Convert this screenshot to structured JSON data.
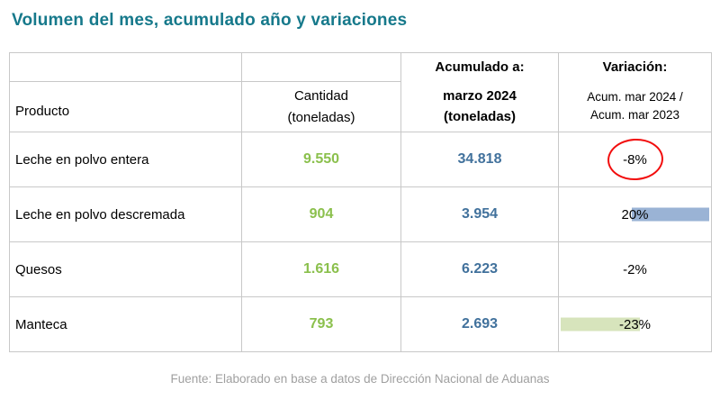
{
  "title": "Volumen del mes, acumulado año y variaciones",
  "footer": "Fuente: Elaborado en base a datos de Dirección Nacional de Aduanas",
  "colors": {
    "title_teal": "#16798b",
    "value_green": "#8bc04d",
    "value_blue": "#41719c",
    "bar_blue": "#9ab3d5",
    "bar_green": "#d7e4bc",
    "annotation_red": "#f20d0d",
    "border_gray": "#c8c8c8",
    "footer_gray": "#a0a0a0"
  },
  "table": {
    "header": {
      "acumulado_top": "Acumulado a:",
      "variacion_top": "Variación:",
      "producto": "Producto",
      "cantidad_line1": "Cantidad",
      "cantidad_line2": "(toneladas)",
      "acumulado_line1": "marzo 2024",
      "acumulado_line2": "(toneladas)",
      "variacion_line1": "Acum. mar 2024 /",
      "variacion_line2": "Acum. mar 2023"
    },
    "rows": [
      {
        "producto": "Leche en polvo entera",
        "cantidad": "9.550",
        "acumulado": "34.818",
        "variacion": "-8%",
        "annotation": "red-circle"
      },
      {
        "producto": "Leche en polvo descremada",
        "cantidad": "904",
        "acumulado": "3.954",
        "variacion": "20%",
        "bar": "blue"
      },
      {
        "producto": "Quesos",
        "cantidad": "1.616",
        "acumulado": "6.223",
        "variacion": "-2%"
      },
      {
        "producto": "Manteca",
        "cantidad": "793",
        "acumulado": "2.693",
        "variacion": "-23%",
        "bar": "green"
      }
    ]
  }
}
